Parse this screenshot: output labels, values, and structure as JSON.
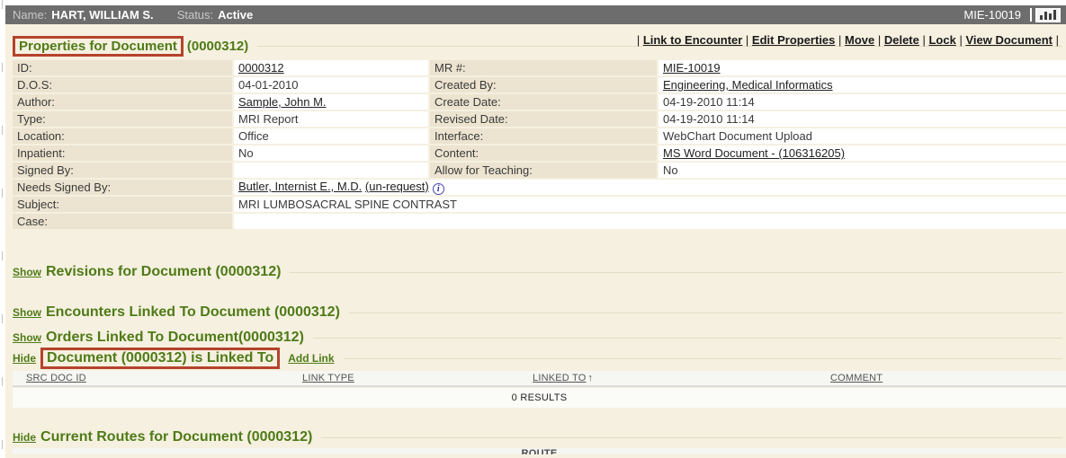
{
  "topbar": {
    "name_label": "Name:",
    "name_value": "HART, WILLIAM S.",
    "status_label": "Status:",
    "status_value": "Active",
    "mrn": "MIE-10019"
  },
  "action_links": [
    "Link to Encounter",
    "Edit Properties",
    "Move",
    "Delete",
    "Lock",
    "View Document"
  ],
  "properties": {
    "title_boxed": "Properties for Document",
    "title_suffix": "(0000312)",
    "rows": [
      {
        "l1": "ID:",
        "v1": {
          "text": "0000312",
          "link": true
        },
        "l2": "MR #:",
        "v2": {
          "text": "MIE-10019",
          "link": true
        }
      },
      {
        "l1": "D.O.S:",
        "v1": {
          "text": "04-01-2010"
        },
        "l2": "Created By:",
        "v2": {
          "text": "Engineering, Medical Informatics",
          "link": true
        }
      },
      {
        "l1": "Author:",
        "v1": {
          "text": "Sample, John M.",
          "link": true
        },
        "l2": "Create Date:",
        "v2": {
          "text": "04-19-2010 11:14"
        }
      },
      {
        "l1": "Type:",
        "v1": {
          "text": "MRI Report"
        },
        "l2": "Revised Date:",
        "v2": {
          "text": "04-19-2010 11:14"
        }
      },
      {
        "l1": "Location:",
        "v1": {
          "text": "Office"
        },
        "l2": "Interface:",
        "v2": {
          "text": "WebChart Document Upload"
        }
      },
      {
        "l1": "Inpatient:",
        "v1": {
          "text": "No"
        },
        "l2": "Content:",
        "v2": {
          "text": "MS Word Document - (106316205)",
          "link": true
        }
      },
      {
        "l1": "Signed By:",
        "v1": {
          "text": ""
        },
        "l2": "Allow for Teaching:",
        "v2": {
          "text": "No"
        }
      },
      {
        "l1": "Needs Signed By:",
        "v1": {
          "text": "Butler, Internist E., M.D.",
          "link": true,
          "extra": "(un-request)",
          "info": true
        },
        "span": true
      },
      {
        "l1": "Subject:",
        "v1": {
          "text": "MRI LUMBOSACRAL SPINE CONTRAST"
        },
        "span": true
      },
      {
        "l1": "Case:",
        "v1": {
          "text": ""
        },
        "span": true
      }
    ]
  },
  "sections": [
    {
      "toggle": "Show",
      "title": "Revisions for Document (0000312)"
    },
    {
      "toggle": "Show",
      "title": "Encounters Linked To Document (0000312)"
    },
    {
      "toggle": "Show",
      "title": "Orders Linked To Document(0000312)"
    }
  ],
  "linked_to": {
    "toggle": "Hide",
    "title": "Document (0000312) is Linked To",
    "add_link": "Add Link",
    "columns": [
      "SRC DOC ID",
      "LINK TYPE",
      "LINKED TO",
      "COMMENT"
    ],
    "sorted_column_index": 2,
    "sort_arrow": "↑",
    "results_text": "0 RESULTS"
  },
  "current_routes": {
    "toggle": "Hide",
    "title": "Current Routes for Document (0000312)",
    "partial_column": "ROUTE"
  },
  "colors": {
    "accent_green": "#4e7b17",
    "annotation_red": "#b5432c",
    "page_cream": "#f6f0e0",
    "label_beige": "#ece4d0",
    "topbar_gray": "#6d6d6d"
  }
}
